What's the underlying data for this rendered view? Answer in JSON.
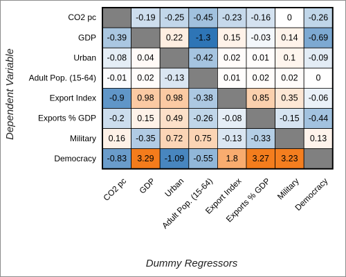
{
  "chart_data": {
    "type": "heatmap",
    "xlabel": "Dummy Regressors",
    "ylabel": "Dependent Variable",
    "rows": [
      "CO2 pc",
      "GDP",
      "Urban",
      "Adult Pop. (15-64)",
      "Export Index",
      "Exports % GDP",
      "Military",
      "Democracy"
    ],
    "columns": [
      "CO2 pc",
      "GDP",
      "Urban",
      "Adult Pop. (15-64)",
      "Export Index",
      "Exports % GDP",
      "Military",
      "Democracy"
    ],
    "values": [
      [
        null,
        -0.19,
        -0.25,
        -0.45,
        -0.23,
        -0.16,
        0,
        -0.26
      ],
      [
        -0.39,
        null,
        0.22,
        -1.3,
        0.15,
        -0.03,
        0.14,
        -0.69
      ],
      [
        -0.08,
        0.04,
        null,
        -0.42,
        0.02,
        0.01,
        0.1,
        -0.09
      ],
      [
        -0.01,
        0.02,
        -0.13,
        null,
        0.01,
        0.02,
        0.02,
        0
      ],
      [
        -0.9,
        0.98,
        0.98,
        -0.38,
        null,
        0.85,
        0.35,
        -0.06
      ],
      [
        -0.2,
        0.15,
        0.49,
        -0.26,
        -0.08,
        null,
        -0.15,
        -0.44
      ],
      [
        0.16,
        -0.35,
        0.72,
        0.75,
        -0.13,
        -0.33,
        null,
        0.13
      ],
      [
        -0.83,
        3.29,
        -1.09,
        -0.55,
        1.8,
        3.27,
        3.23,
        null
      ]
    ],
    "diagonal_masked": true,
    "colors": {
      "negative": "#2e75b6",
      "positive": "#f47c1c",
      "neutral": "#ffffff",
      "masked": "#808080",
      "grid": "#000000"
    },
    "legend": "none",
    "grid": true
  }
}
